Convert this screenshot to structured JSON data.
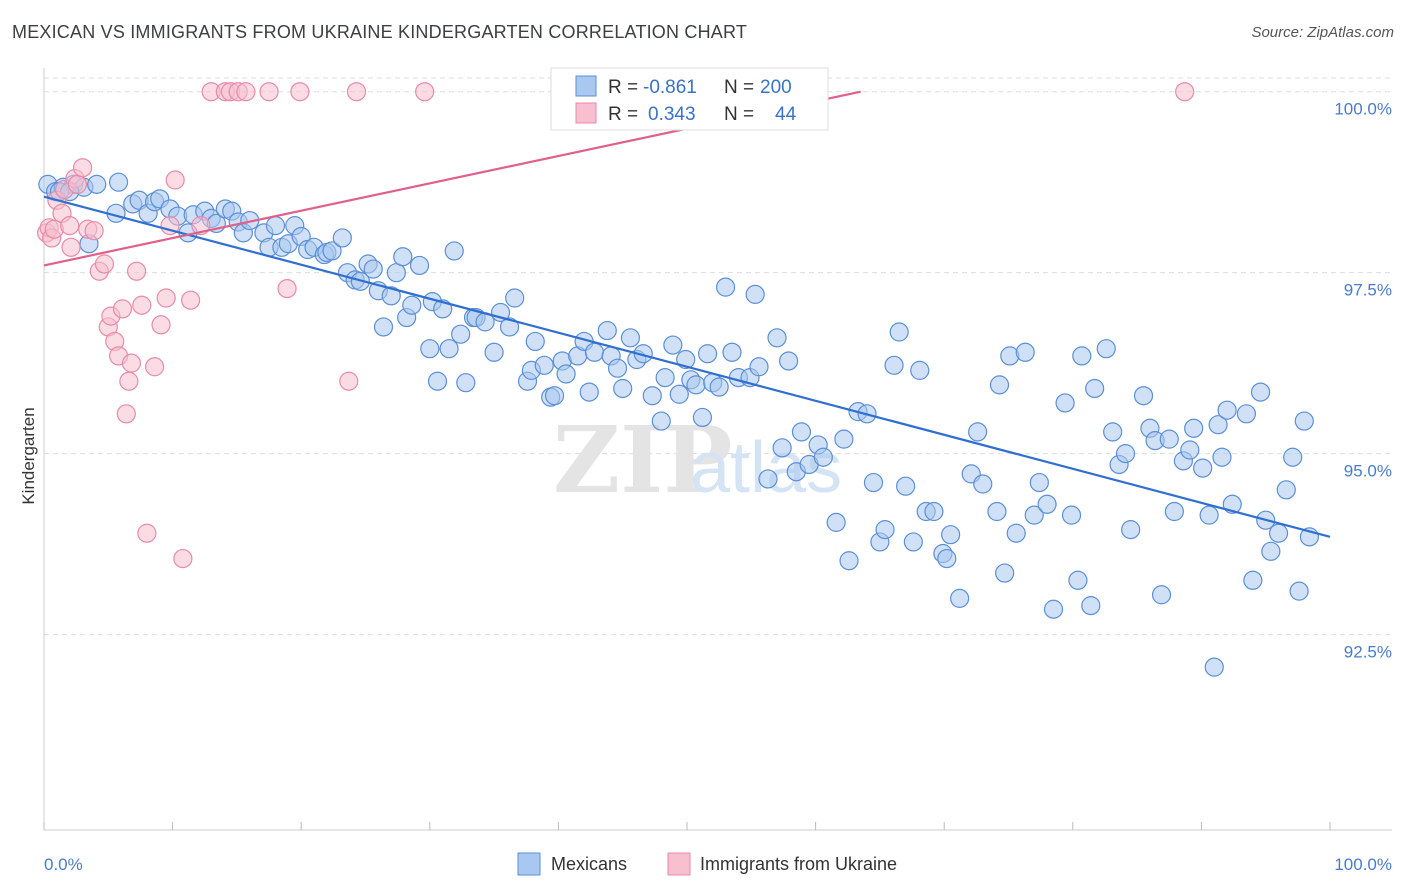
{
  "title": "MEXICAN VS IMMIGRANTS FROM UKRAINE KINDERGARTEN CORRELATION CHART",
  "source": "Source: ZipAtlas.com",
  "watermark": {
    "zip": "ZIP",
    "atlas": "atlas"
  },
  "legend": {
    "r_label": "R =",
    "n_label": "N =",
    "rows": [
      {
        "r": "-0.861",
        "n": "200"
      },
      {
        "r": "0.343",
        "n": "44"
      }
    ]
  },
  "bottom_legend": [
    "Mexicans",
    "Immigrants from Ukraine"
  ],
  "colors": {
    "blue_fill": "#a9c8f0",
    "blue_stroke": "#5b8fd6",
    "blue_line": "#2f6fcf",
    "pink_fill": "#f8bfd0",
    "pink_stroke": "#e88aa8",
    "pink_line": "#e0608a",
    "tick_text": "#4a7cc9",
    "grid": "#dddddd"
  },
  "chart_data": {
    "type": "scatter",
    "title": "MEXICAN VS IMMIGRANTS FROM UKRAINE KINDERGARTEN CORRELATION CHART",
    "xlabel": "",
    "ylabel": "Kindergarten",
    "x_tick_labels": [
      "0.0%",
      "100.0%"
    ],
    "y_tick_labels": [
      "100.0%",
      "97.5%",
      "95.0%",
      "92.5%"
    ],
    "y_ticks": [
      100.0,
      97.5,
      95.0,
      92.5
    ],
    "xlim": [
      0,
      100
    ],
    "ylim": [
      89.8,
      100.3
    ],
    "grid": true,
    "legend_position": "top-center",
    "series": [
      {
        "name": "Mexicans",
        "R": -0.861,
        "N": 200,
        "trend": {
          "x0": 0,
          "y0": 98.55,
          "x1": 100,
          "y1": 93.85
        },
        "points": [
          [
            0.3,
            98.72
          ],
          [
            0.9,
            98.62
          ],
          [
            1.5,
            98.68
          ],
          [
            2.3,
            98.72
          ],
          [
            3.1,
            98.68
          ],
          [
            4.1,
            98.72
          ],
          [
            5.8,
            98.75
          ],
          [
            1.2,
            98.62
          ],
          [
            2.0,
            98.62
          ],
          [
            3.5,
            97.9
          ],
          [
            5.6,
            98.32
          ],
          [
            6.9,
            98.45
          ],
          [
            7.4,
            98.5
          ],
          [
            8.1,
            98.32
          ],
          [
            8.6,
            98.48
          ],
          [
            9.0,
            98.52
          ],
          [
            9.8,
            98.38
          ],
          [
            10.4,
            98.28
          ],
          [
            11.2,
            98.05
          ],
          [
            11.6,
            98.3
          ],
          [
            12.5,
            98.35
          ],
          [
            13.0,
            98.25
          ],
          [
            13.4,
            98.18
          ],
          [
            14.1,
            98.38
          ],
          [
            14.6,
            98.35
          ],
          [
            15.1,
            98.2
          ],
          [
            15.5,
            98.05
          ],
          [
            16.0,
            98.22
          ],
          [
            17.1,
            98.05
          ],
          [
            17.5,
            97.85
          ],
          [
            18.0,
            98.15
          ],
          [
            18.5,
            97.85
          ],
          [
            19.0,
            97.9
          ],
          [
            19.5,
            98.15
          ],
          [
            20.0,
            98.0
          ],
          [
            20.5,
            97.82
          ],
          [
            21.0,
            97.85
          ],
          [
            21.8,
            97.75
          ],
          [
            22.0,
            97.78
          ],
          [
            22.4,
            97.8
          ],
          [
            23.2,
            97.98
          ],
          [
            23.6,
            97.5
          ],
          [
            24.2,
            97.4
          ],
          [
            24.6,
            97.38
          ],
          [
            25.2,
            97.62
          ],
          [
            25.6,
            97.55
          ],
          [
            26.0,
            97.25
          ],
          [
            26.4,
            96.75
          ],
          [
            27.0,
            97.18
          ],
          [
            27.4,
            97.5
          ],
          [
            27.9,
            97.72
          ],
          [
            28.2,
            96.88
          ],
          [
            28.6,
            97.05
          ],
          [
            29.2,
            97.6
          ],
          [
            30.0,
            96.45
          ],
          [
            30.2,
            97.1
          ],
          [
            30.6,
            96.0
          ],
          [
            31.0,
            97.0
          ],
          [
            31.5,
            96.45
          ],
          [
            31.9,
            97.8
          ],
          [
            32.4,
            96.65
          ],
          [
            32.8,
            95.98
          ],
          [
            33.4,
            96.88
          ],
          [
            33.6,
            96.88
          ],
          [
            34.3,
            96.82
          ],
          [
            35.0,
            96.4
          ],
          [
            35.5,
            96.95
          ],
          [
            36.2,
            96.75
          ],
          [
            36.6,
            97.15
          ],
          [
            37.6,
            96.0
          ],
          [
            37.9,
            96.15
          ],
          [
            38.2,
            96.55
          ],
          [
            38.9,
            96.22
          ],
          [
            39.4,
            95.78
          ],
          [
            39.7,
            95.8
          ],
          [
            40.3,
            96.28
          ],
          [
            40.6,
            96.1
          ],
          [
            41.5,
            96.35
          ],
          [
            42.0,
            96.55
          ],
          [
            42.4,
            95.85
          ],
          [
            42.8,
            96.4
          ],
          [
            43.8,
            96.7
          ],
          [
            44.1,
            96.35
          ],
          [
            44.6,
            96.18
          ],
          [
            45.0,
            95.9
          ],
          [
            45.6,
            96.6
          ],
          [
            46.1,
            96.3
          ],
          [
            46.6,
            96.38
          ],
          [
            47.3,
            95.8
          ],
          [
            48.0,
            95.45
          ],
          [
            48.3,
            96.05
          ],
          [
            48.9,
            96.5
          ],
          [
            49.4,
            95.82
          ],
          [
            49.9,
            96.3
          ],
          [
            50.3,
            96.02
          ],
          [
            50.7,
            95.95
          ],
          [
            51.2,
            95.5
          ],
          [
            51.6,
            96.38
          ],
          [
            52.0,
            95.98
          ],
          [
            52.5,
            95.92
          ],
          [
            53.0,
            97.3
          ],
          [
            53.5,
            96.4
          ],
          [
            54.0,
            96.05
          ],
          [
            54.9,
            96.05
          ],
          [
            55.3,
            97.2
          ],
          [
            55.6,
            96.2
          ],
          [
            56.3,
            94.65
          ],
          [
            57.0,
            96.6
          ],
          [
            57.4,
            95.08
          ],
          [
            57.9,
            96.28
          ],
          [
            58.5,
            94.75
          ],
          [
            58.9,
            95.3
          ],
          [
            59.5,
            94.85
          ],
          [
            60.2,
            95.12
          ],
          [
            60.6,
            94.95
          ],
          [
            61.6,
            94.05
          ],
          [
            62.2,
            95.2
          ],
          [
            62.6,
            93.52
          ],
          [
            63.3,
            95.58
          ],
          [
            64.0,
            95.55
          ],
          [
            64.5,
            94.6
          ],
          [
            65.0,
            93.78
          ],
          [
            65.4,
            93.95
          ],
          [
            66.1,
            96.22
          ],
          [
            66.5,
            96.68
          ],
          [
            67.0,
            94.55
          ],
          [
            67.6,
            93.78
          ],
          [
            68.1,
            96.15
          ],
          [
            68.6,
            94.2
          ],
          [
            69.2,
            94.2
          ],
          [
            69.9,
            93.62
          ],
          [
            70.2,
            93.55
          ],
          [
            70.5,
            93.88
          ],
          [
            71.2,
            93.0
          ],
          [
            72.1,
            94.72
          ],
          [
            72.6,
            95.3
          ],
          [
            73.0,
            94.58
          ],
          [
            74.1,
            94.2
          ],
          [
            74.3,
            95.95
          ],
          [
            74.7,
            93.35
          ],
          [
            75.1,
            96.35
          ],
          [
            75.6,
            93.9
          ],
          [
            76.3,
            96.4
          ],
          [
            77.0,
            94.15
          ],
          [
            77.4,
            94.6
          ],
          [
            78.0,
            94.3
          ],
          [
            78.5,
            92.85
          ],
          [
            79.4,
            95.7
          ],
          [
            79.9,
            94.15
          ],
          [
            80.4,
            93.25
          ],
          [
            80.7,
            96.35
          ],
          [
            81.4,
            92.9
          ],
          [
            81.7,
            95.9
          ],
          [
            82.6,
            96.45
          ],
          [
            83.1,
            95.3
          ],
          [
            83.6,
            94.85
          ],
          [
            84.1,
            95.0
          ],
          [
            84.5,
            93.95
          ],
          [
            85.5,
            95.8
          ],
          [
            86.0,
            95.35
          ],
          [
            86.4,
            95.18
          ],
          [
            86.9,
            93.05
          ],
          [
            87.5,
            95.2
          ],
          [
            87.9,
            94.2
          ],
          [
            88.6,
            94.9
          ],
          [
            89.1,
            95.05
          ],
          [
            89.4,
            95.35
          ],
          [
            90.1,
            94.8
          ],
          [
            90.6,
            94.15
          ],
          [
            91.0,
            92.05
          ],
          [
            91.3,
            95.4
          ],
          [
            91.6,
            94.95
          ],
          [
            92.0,
            95.6
          ],
          [
            92.4,
            94.3
          ],
          [
            93.5,
            95.55
          ],
          [
            94.0,
            93.25
          ],
          [
            94.6,
            95.85
          ],
          [
            95.0,
            94.08
          ],
          [
            95.4,
            93.65
          ],
          [
            96.0,
            93.9
          ],
          [
            96.6,
            94.5
          ],
          [
            97.1,
            94.95
          ],
          [
            97.6,
            93.1
          ],
          [
            98.0,
            95.45
          ],
          [
            98.4,
            93.85
          ]
        ]
      },
      {
        "name": "Immigrants from Ukraine",
        "R": 0.343,
        "N": 44,
        "trend": {
          "x0": 0,
          "y0": 97.6,
          "x1": 63.5,
          "y1": 100.0
        },
        "points": [
          [
            0.2,
            98.05
          ],
          [
            0.4,
            98.12
          ],
          [
            0.6,
            97.98
          ],
          [
            0.8,
            98.1
          ],
          [
            1.0,
            98.5
          ],
          [
            1.4,
            98.32
          ],
          [
            1.6,
            98.65
          ],
          [
            2.0,
            98.15
          ],
          [
            2.1,
            97.85
          ],
          [
            2.4,
            98.8
          ],
          [
            2.6,
            98.72
          ],
          [
            3.0,
            98.95
          ],
          [
            3.4,
            98.1
          ],
          [
            3.9,
            98.08
          ],
          [
            4.3,
            97.52
          ],
          [
            4.7,
            97.62
          ],
          [
            5.0,
            96.75
          ],
          [
            5.2,
            96.9
          ],
          [
            5.5,
            96.55
          ],
          [
            5.8,
            96.35
          ],
          [
            6.1,
            97.0
          ],
          [
            6.4,
            95.55
          ],
          [
            6.6,
            96.0
          ],
          [
            6.8,
            96.25
          ],
          [
            7.2,
            97.52
          ],
          [
            7.6,
            97.05
          ],
          [
            8.0,
            93.9
          ],
          [
            8.6,
            96.2
          ],
          [
            9.1,
            96.78
          ],
          [
            9.5,
            97.15
          ],
          [
            9.8,
            98.15
          ],
          [
            10.2,
            98.78
          ],
          [
            10.8,
            93.55
          ],
          [
            11.4,
            97.12
          ],
          [
            12.2,
            98.15
          ],
          [
            13.0,
            100.0
          ],
          [
            14.1,
            100.0
          ],
          [
            14.5,
            100.0
          ],
          [
            15.1,
            100.0
          ],
          [
            15.7,
            100.0
          ],
          [
            17.5,
            100.0
          ],
          [
            18.9,
            97.28
          ],
          [
            23.7,
            96.0
          ],
          [
            19.9,
            100.0
          ],
          [
            24.3,
            100.0
          ],
          [
            29.6,
            100.0
          ],
          [
            88.7,
            100.0
          ]
        ]
      }
    ]
  }
}
